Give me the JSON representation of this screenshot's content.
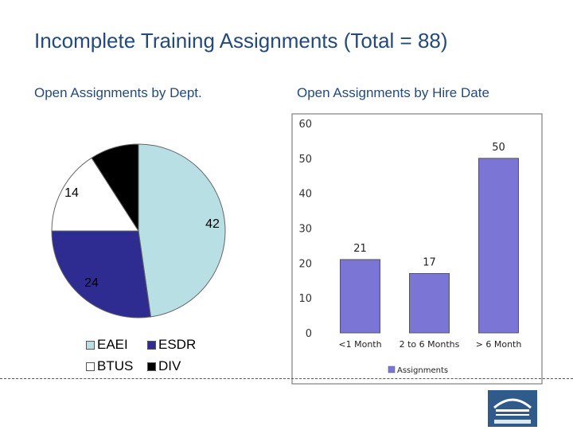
{
  "slide": {
    "title": "Incomplete Training Assignments (Total = 88)"
  },
  "chart_data": [
    {
      "type": "pie",
      "subtitle": "Open Assignments by Dept.",
      "slices": [
        {
          "label": "EAEI",
          "value": 42,
          "color": "#b8dfe3"
        },
        {
          "label": "ESDR",
          "value": 24,
          "color": "#2e2b91"
        },
        {
          "label": "BTUS",
          "value": 14,
          "color": "#ffffff"
        },
        {
          "label": "DIV",
          "value": 8,
          "color": "#000000"
        }
      ],
      "data_labels_shown": [
        "42",
        "24",
        "14"
      ],
      "legend": {
        "placement": "bottom",
        "entries": [
          "EAEI",
          "ESDR",
          "BTUS",
          "DIV"
        ]
      }
    },
    {
      "type": "bar",
      "subtitle": "Open Assignments by Hire Date",
      "categories": [
        "<1 Month",
        "2 to 6 Months",
        "> 6 Month"
      ],
      "series": [
        {
          "name": "Assignments",
          "values": [
            21,
            17,
            50
          ],
          "color": "#7b76d6"
        }
      ],
      "ylim": [
        0,
        60
      ],
      "yticks": [
        "0",
        "10",
        "20",
        "30",
        "40",
        "50",
        "60"
      ],
      "grid": false,
      "legend": {
        "placement": "bottom",
        "entries": [
          "Assignments"
        ]
      }
    }
  ]
}
